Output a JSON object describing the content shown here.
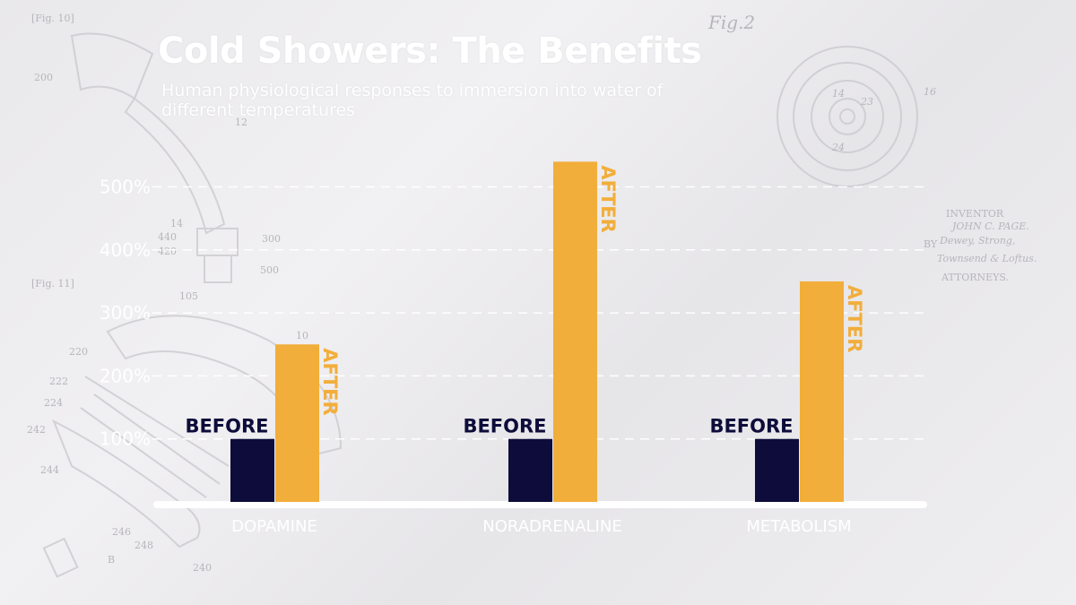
{
  "title": "Cold Showers: The Benefits",
  "subtitle": "Human physiological responses to immersion into water of different temperatures",
  "background": {
    "fig10": "[Fig. 10]",
    "fig11": "[Fig. 11]",
    "fig2": "Fig.2",
    "inventor_lines": [
      "INVENTOR",
      "JOHN C. PAGE.",
      "BY",
      "Dewey, Strong,",
      "Townsend & Loftus.",
      "ATTORNEYS."
    ],
    "part_numbers": [
      "200",
      "12",
      "14",
      "440",
      "420",
      "300",
      "500",
      "105",
      "10",
      "220",
      "222",
      "224",
      "242",
      "244",
      "246",
      "248",
      "240",
      "B",
      "14",
      "23",
      "24",
      "16"
    ]
  },
  "chart_data": {
    "type": "bar",
    "title": "Cold Showers: The Benefits",
    "subtitle": "Human physiological responses to immersion into water of different temperatures",
    "categories": [
      "DOPAMINE",
      "NORADRENALINE",
      "METABOLISM"
    ],
    "series": [
      {
        "name": "BEFORE",
        "values": [
          100,
          100,
          100
        ],
        "color": "#0d0c3a"
      },
      {
        "name": "AFTER",
        "values": [
          250,
          540,
          350
        ],
        "color": "#f2ae3b"
      }
    ],
    "yticks": [
      100,
      200,
      300,
      400,
      500
    ],
    "ytick_labels": [
      "100%",
      "200%",
      "300%",
      "400%",
      "500%"
    ],
    "ylim": [
      0,
      560
    ],
    "grid": true,
    "legend": "none",
    "colors": {
      "text": "#ffffff",
      "before_label": "#0d0c3a",
      "after_label": "#f2ae3b",
      "grid": "#ffffff"
    }
  }
}
